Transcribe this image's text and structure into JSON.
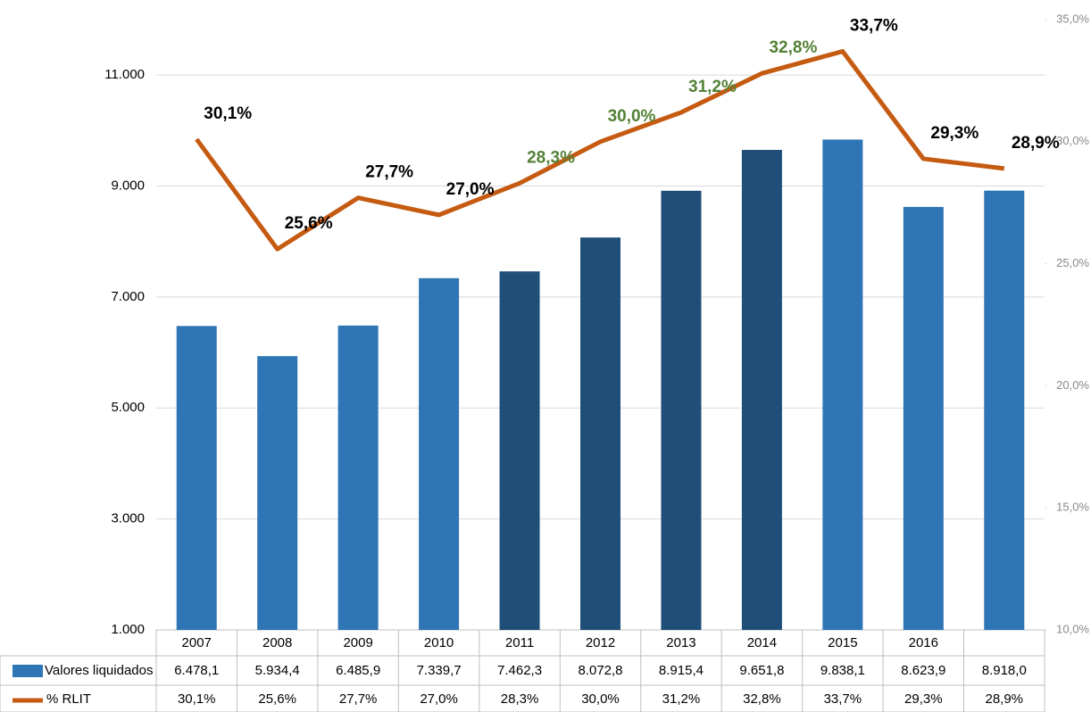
{
  "chart_data": {
    "type": "bar-line",
    "categories": [
      "2007",
      "2008",
      "2009",
      "2010",
      "2011",
      "2012",
      "2013",
      "2014",
      "2015",
      "2016",
      null
    ],
    "series": [
      {
        "name": "Valores liquidados",
        "type": "bar",
        "color": "#2e75b6",
        "colors": [
          "#2e75b6",
          "#2e75b6",
          "#2e75b6",
          "#2e75b6",
          "#1f4e79",
          "#1f4e79",
          "#1f4e79",
          "#1f4e79",
          "#2e75b6",
          "#2e75b6",
          "#2e75b6"
        ],
        "values": [
          6478.1,
          5934.4,
          6485.9,
          7339.7,
          7462.3,
          8072.8,
          8915.4,
          9651.8,
          9838.1,
          8623.9,
          8918.0
        ],
        "value_labels": [
          "6.478,1",
          "5.934,4",
          "6.485,9",
          "7.339,7",
          "7.462,3",
          "8.072,8",
          "8.915,4",
          "9.651,8",
          "9.838,1",
          "8.623,9",
          "8.918,0"
        ]
      },
      {
        "name": "% RLIT",
        "type": "line",
        "axis": "y2",
        "color": "#c55a11",
        "label_colors": [
          "#000000",
          "#000000",
          "#000000",
          "#000000",
          "#538135",
          "#538135",
          "#538135",
          "#538135",
          "#000000",
          "#000000",
          "#000000"
        ],
        "values": [
          30.1,
          25.6,
          27.7,
          27.0,
          28.3,
          30.0,
          31.2,
          32.8,
          33.7,
          29.3,
          28.9
        ],
        "value_labels": [
          "30,1%",
          "25,6%",
          "27,7%",
          "27,0%",
          "28,3%",
          "30,0%",
          "31,2%",
          "32,8%",
          "33,7%",
          "29,3%",
          "28,9%"
        ]
      }
    ],
    "ylim": [
      1000,
      12000
    ],
    "yticks": [
      {
        "value": 1000,
        "label": "1.000"
      },
      {
        "value": 3000,
        "label": "3.000"
      },
      {
        "value": 5000,
        "label": "5.000"
      },
      {
        "value": 7000,
        "label": "7.000"
      },
      {
        "value": 9000,
        "label": "9.000"
      },
      {
        "value": 11000,
        "label": "11.000"
      }
    ],
    "y2lim": [
      10,
      35
    ],
    "y2ticks": [
      {
        "value": 10,
        "label": "10,0%"
      },
      {
        "value": 15,
        "label": "15,0%"
      },
      {
        "value": 20,
        "label": "20,0%"
      },
      {
        "value": 25,
        "label": "25,0%"
      },
      {
        "value": 30,
        "label": "30,0%"
      },
      {
        "value": 35,
        "label": "35,0%"
      }
    ],
    "grid": true
  }
}
